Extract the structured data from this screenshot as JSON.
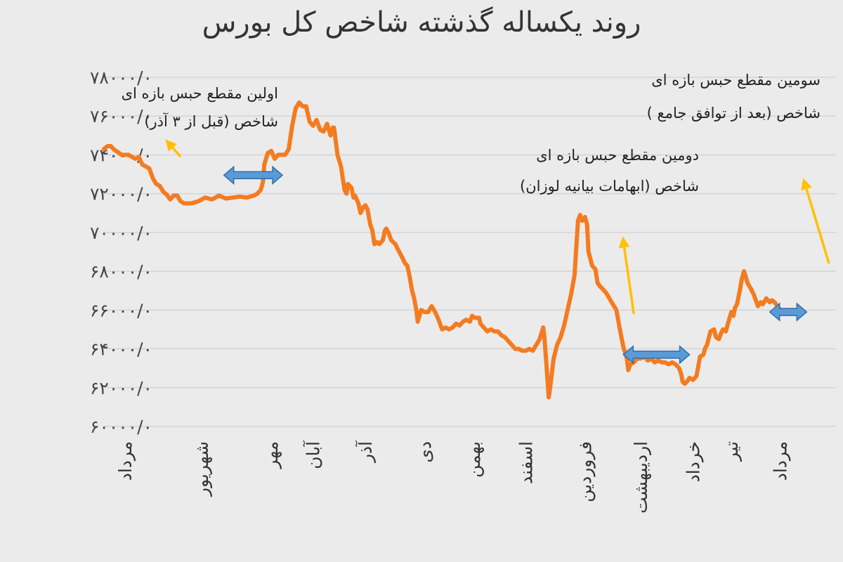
{
  "chart_data": {
    "type": "line",
    "title": "روند یکساله گذشته شاخص کل بورس",
    "xlabel": "",
    "ylabel": "",
    "ylim": [
      60000,
      78000
    ],
    "yticks": [
      60000,
      62000,
      64000,
      66000,
      68000,
      70000,
      72000,
      74000,
      76000,
      78000
    ],
    "ytick_labels": [
      "۶۰۰۰۰/۰",
      "۶۲۰۰۰/۰",
      "۶۴۰۰۰/۰",
      "۶۶۰۰۰/۰",
      "۶۸۰۰۰/۰",
      "۷۰۰۰۰/۰",
      "۷۲۰۰۰/۰",
      "۷۴۰۰۰/۰",
      "۷۶۰۰۰/۰",
      "۷۸۰۰۰/۰"
    ],
    "categories": [
      "مرداد",
      "شهریور",
      "مهر",
      "آبان",
      "آذر",
      "دی",
      "بهمن",
      "اسفند",
      "فروردین",
      "اردیبهشت",
      "خرداد",
      "تیر",
      "مرداد"
    ],
    "category_positions": [
      0.3,
      1.4,
      2.4,
      3.0,
      3.75,
      4.6,
      5.3,
      6.05,
      6.9,
      7.7,
      8.45,
      9.0,
      9.7
    ],
    "x_range": [
      0,
      10.5
    ],
    "grid": true,
    "series": [
      {
        "color": "#f47b20",
        "points": [
          [
            0.0,
            74300
          ],
          [
            0.05,
            74450
          ],
          [
            0.1,
            74450
          ],
          [
            0.15,
            74250
          ],
          [
            0.2,
            74150
          ],
          [
            0.25,
            74000
          ],
          [
            0.35,
            74000
          ],
          [
            0.45,
            73800
          ],
          [
            0.5,
            73900
          ],
          [
            0.55,
            73500
          ],
          [
            0.65,
            73300
          ],
          [
            0.7,
            72800
          ],
          [
            0.75,
            72500
          ],
          [
            0.8,
            72400
          ],
          [
            0.85,
            72100
          ],
          [
            0.9,
            71950
          ],
          [
            0.95,
            71700
          ],
          [
            1.0,
            71900
          ],
          [
            1.05,
            71900
          ],
          [
            1.1,
            71600
          ],
          [
            1.15,
            71500
          ],
          [
            1.25,
            71500
          ],
          [
            1.35,
            71600
          ],
          [
            1.45,
            71800
          ],
          [
            1.55,
            71700
          ],
          [
            1.65,
            71900
          ],
          [
            1.75,
            71750
          ],
          [
            1.85,
            71800
          ],
          [
            1.95,
            71850
          ],
          [
            2.05,
            71800
          ],
          [
            2.15,
            71900
          ],
          [
            2.2,
            72000
          ],
          [
            2.25,
            72200
          ],
          [
            2.28,
            72600
          ],
          [
            2.3,
            73500
          ],
          [
            2.35,
            74100
          ],
          [
            2.4,
            74200
          ],
          [
            2.45,
            73800
          ],
          [
            2.5,
            74000
          ],
          [
            2.55,
            74000
          ],
          [
            2.6,
            74000
          ],
          [
            2.65,
            74300
          ],
          [
            2.7,
            75500
          ],
          [
            2.75,
            76400
          ],
          [
            2.8,
            76700
          ],
          [
            2.85,
            76500
          ],
          [
            2.9,
            76500
          ],
          [
            2.95,
            75700
          ],
          [
            3.0,
            75500
          ],
          [
            3.05,
            75800
          ],
          [
            3.1,
            75300
          ],
          [
            3.15,
            75200
          ],
          [
            3.2,
            75600
          ],
          [
            3.25,
            75000
          ],
          [
            3.28,
            75400
          ],
          [
            3.3,
            75400
          ],
          [
            3.35,
            74000
          ],
          [
            3.4,
            73400
          ],
          [
            3.45,
            72200
          ],
          [
            3.48,
            72000
          ],
          [
            3.5,
            72500
          ],
          [
            3.55,
            72300
          ],
          [
            3.58,
            71800
          ],
          [
            3.6,
            71900
          ],
          [
            3.65,
            71500
          ],
          [
            3.68,
            71000
          ],
          [
            3.72,
            71300
          ],
          [
            3.75,
            71400
          ],
          [
            3.78,
            71200
          ],
          [
            3.82,
            70400
          ],
          [
            3.85,
            70100
          ],
          [
            3.88,
            69400
          ],
          [
            3.92,
            69500
          ],
          [
            3.95,
            69400
          ],
          [
            4.0,
            69600
          ],
          [
            4.03,
            70100
          ],
          [
            4.05,
            70200
          ],
          [
            4.08,
            70000
          ],
          [
            4.12,
            69600
          ],
          [
            4.18,
            69400
          ],
          [
            4.22,
            69100
          ],
          [
            4.28,
            68700
          ],
          [
            4.32,
            68400
          ],
          [
            4.35,
            68300
          ],
          [
            4.38,
            67800
          ],
          [
            4.42,
            67000
          ],
          [
            4.45,
            66600
          ],
          [
            4.48,
            66000
          ],
          [
            4.5,
            65400
          ],
          [
            4.55,
            66000
          ],
          [
            4.6,
            65900
          ],
          [
            4.65,
            65900
          ],
          [
            4.7,
            66200
          ],
          [
            4.75,
            65900
          ],
          [
            4.8,
            65500
          ],
          [
            4.85,
            65000
          ],
          [
            4.9,
            65100
          ],
          [
            4.95,
            65000
          ],
          [
            5.0,
            65100
          ],
          [
            5.05,
            65300
          ],
          [
            5.1,
            65200
          ],
          [
            5.15,
            65400
          ],
          [
            5.2,
            65500
          ],
          [
            5.25,
            65400
          ],
          [
            5.28,
            65700
          ],
          [
            5.32,
            65600
          ],
          [
            5.38,
            65600
          ],
          [
            5.4,
            65300
          ],
          [
            5.45,
            65100
          ],
          [
            5.5,
            64900
          ],
          [
            5.55,
            65000
          ],
          [
            5.6,
            64900
          ],
          [
            5.65,
            64900
          ],
          [
            5.7,
            64700
          ],
          [
            5.75,
            64600
          ],
          [
            5.8,
            64400
          ],
          [
            5.85,
            64200
          ],
          [
            5.9,
            64000
          ],
          [
            5.95,
            64000
          ],
          [
            6.0,
            63900
          ],
          [
            6.05,
            63900
          ],
          [
            6.1,
            64000
          ],
          [
            6.15,
            63900
          ],
          [
            6.2,
            64200
          ],
          [
            6.25,
            64500
          ],
          [
            6.3,
            65100
          ],
          [
            6.32,
            64500
          ],
          [
            6.35,
            63000
          ],
          [
            6.38,
            61500
          ],
          [
            6.4,
            62000
          ],
          [
            6.45,
            63500
          ],
          [
            6.5,
            64200
          ],
          [
            6.55,
            64600
          ],
          [
            6.6,
            65200
          ],
          [
            6.65,
            66000
          ],
          [
            6.7,
            66800
          ],
          [
            6.75,
            67800
          ],
          [
            6.78,
            69500
          ],
          [
            6.8,
            70600
          ],
          [
            6.83,
            70900
          ],
          [
            6.86,
            70600
          ],
          [
            6.9,
            70800
          ],
          [
            6.93,
            70400
          ],
          [
            6.95,
            69000
          ],
          [
            6.98,
            68600
          ],
          [
            7.0,
            68300
          ],
          [
            7.05,
            68100
          ],
          [
            7.08,
            67400
          ],
          [
            7.12,
            67200
          ],
          [
            7.15,
            67100
          ],
          [
            7.2,
            66900
          ],
          [
            7.25,
            66600
          ],
          [
            7.3,
            66300
          ],
          [
            7.35,
            66000
          ],
          [
            7.38,
            65400
          ],
          [
            7.4,
            65000
          ],
          [
            7.45,
            64100
          ],
          [
            7.5,
            63500
          ],
          [
            7.52,
            62900
          ],
          [
            7.55,
            63200
          ],
          [
            7.6,
            63300
          ],
          [
            7.65,
            63500
          ],
          [
            7.7,
            63500
          ],
          [
            7.75,
            63600
          ],
          [
            7.8,
            63400
          ],
          [
            7.85,
            63500
          ],
          [
            7.9,
            63300
          ],
          [
            7.95,
            63400
          ],
          [
            8.0,
            63300
          ],
          [
            8.05,
            63300
          ],
          [
            8.1,
            63200
          ],
          [
            8.15,
            63300
          ],
          [
            8.2,
            63200
          ],
          [
            8.25,
            63000
          ],
          [
            8.28,
            62700
          ],
          [
            8.3,
            62300
          ],
          [
            8.33,
            62200
          ],
          [
            8.36,
            62300
          ],
          [
            8.4,
            62500
          ],
          [
            8.45,
            62400
          ],
          [
            8.5,
            62600
          ],
          [
            8.52,
            63000
          ],
          [
            8.55,
            63600
          ],
          [
            8.6,
            63700
          ],
          [
            8.62,
            64000
          ],
          [
            8.65,
            64200
          ],
          [
            8.7,
            64900
          ],
          [
            8.75,
            65000
          ],
          [
            8.78,
            64600
          ],
          [
            8.82,
            64500
          ],
          [
            8.85,
            64800
          ],
          [
            8.88,
            65000
          ],
          [
            8.92,
            64900
          ],
          [
            8.95,
            65300
          ],
          [
            9.0,
            65900
          ],
          [
            9.03,
            65700
          ],
          [
            9.05,
            66100
          ],
          [
            9.08,
            66300
          ],
          [
            9.12,
            67000
          ],
          [
            9.15,
            67600
          ],
          [
            9.18,
            68000
          ],
          [
            9.2,
            67800
          ],
          [
            9.23,
            67400
          ],
          [
            9.28,
            67100
          ],
          [
            9.32,
            66800
          ],
          [
            9.35,
            66500
          ],
          [
            9.38,
            66200
          ],
          [
            9.42,
            66400
          ],
          [
            9.45,
            66300
          ],
          [
            9.5,
            66600
          ],
          [
            9.55,
            66400
          ],
          [
            9.58,
            66500
          ],
          [
            9.62,
            66400
          ],
          [
            9.66,
            66200
          ],
          [
            9.7,
            66000
          ],
          [
            9.75,
            65900
          ]
        ]
      }
    ],
    "annotations": [
      {
        "lines": [
          "اولین مقطع حبس بازه ای",
          "شاخص (قبل از ۳ آذر)"
        ]
      },
      {
        "lines": [
          "دومین مقطع حبس بازه ای",
          "شاخص (ابهامات بیانیه لوزان)"
        ]
      },
      {
        "lines": [
          "سومین مقطع حبس بازه ای",
          "شاخص (بعد از توافق جامع )"
        ]
      }
    ],
    "range_markers": [
      {
        "x": [
          1.72,
          2.56
        ],
        "y": 72950
      },
      {
        "x": [
          7.45,
          8.4
        ],
        "y": 63700
      },
      {
        "x": [
          9.55,
          10.08
        ],
        "y": 65900
      }
    ],
    "pointer_arrows": [
      {
        "from": [
          1.1,
          73900
        ],
        "to": [
          0.88,
          74800
        ]
      },
      {
        "from": [
          7.6,
          65800
        ],
        "to": [
          7.44,
          69800
        ]
      },
      {
        "from": [
          10.4,
          68400
        ],
        "to": [
          10.03,
          72800
        ]
      }
    ]
  }
}
